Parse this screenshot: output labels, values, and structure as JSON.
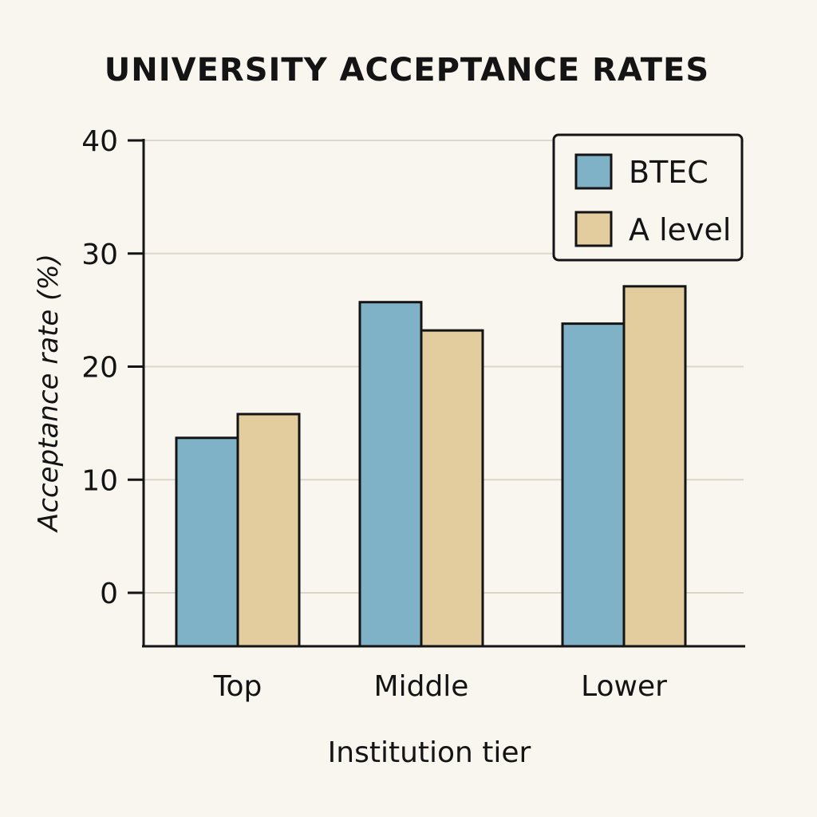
{
  "chart_data": {
    "type": "bar",
    "title": "UNIVERSITY ACCEPTANCE RATES",
    "xlabel": "Institution tier",
    "ylabel": "Acceptance rate (%)",
    "categories": [
      "Top",
      "Middle",
      "Lower"
    ],
    "series": [
      {
        "name": "BTEC",
        "color": "#7fb2c6",
        "values": [
          13.7,
          25.7,
          23.8
        ]
      },
      {
        "name": "A level",
        "color": "#e3cc9d",
        "values": [
          15.8,
          23.2,
          27.1
        ]
      }
    ],
    "ylim": [
      0,
      40
    ],
    "yticks": [
      0,
      10,
      20,
      30,
      40
    ],
    "grid": true,
    "legend_position": "top-right"
  }
}
